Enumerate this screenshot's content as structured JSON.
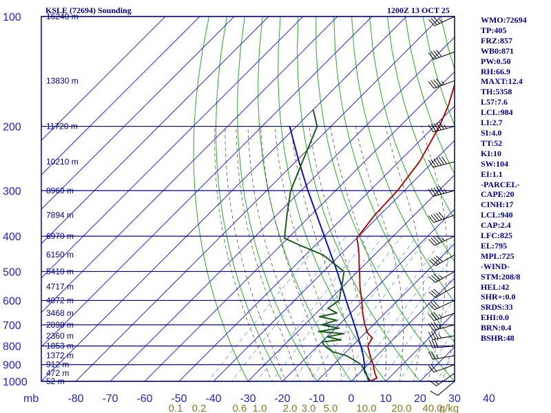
{
  "header": {
    "title_left": "KSLE (72694) Sounding",
    "title_right": "1200Z 13 OCT 25"
  },
  "indices": [
    "WMO:72694",
    "TP:405",
    "FRZ:857",
    "WB0:871",
    "PW:0.50",
    "RH:66.9",
    "MAXT:12.4",
    "TH:5358",
    "L57:7.6",
    "LCL:984",
    "LI:2.7",
    "SI:4.0",
    "TT:52",
    "KI:10",
    "SW:104",
    "EI:1.1",
    "-PARCEL-",
    "CAPE:20",
    "CINH:17",
    "LCL:940",
    "CAP:2.4",
    "LFC:825",
    "EL:795",
    "MPL:725",
    "-WIND-",
    "STM:208/8",
    "HEL:42",
    "SHR+:0.0",
    "SRDS:33",
    "EHI:0.0",
    "BRN:0.4",
    "BSHR:48"
  ],
  "colors": {
    "frame": "#00008b",
    "isotherm": "#2a2acc",
    "isobar": "#00008b",
    "dry_adiabat": "#22aa22",
    "moist_adiabat": "#555544",
    "mixing_ratio": "#55aadd",
    "temperature": "#aa1111",
    "dewpoint": "#1a5a1a",
    "parcel": "#1111aa",
    "axis_text": "#2222cc",
    "mixing_text": "#887722",
    "wind_barb": "#000000"
  },
  "chart_data": {
    "type": "skew-t",
    "x_axis": {
      "unit_label": "mb",
      "temperature_ticks": [
        -80,
        -70,
        -60,
        -50,
        -40,
        -30,
        -20,
        -10,
        0,
        10,
        20,
        30,
        40
      ],
      "temperature_tick_labels": [
        "-80",
        "-70",
        "-60",
        "-50",
        "-40",
        "-30",
        "-20",
        "-10",
        "0",
        "10",
        "20",
        "30",
        "40"
      ]
    },
    "y_axis": {
      "scale": "log",
      "pressure_ticks_mb": [
        100,
        200,
        300,
        400,
        500,
        600,
        700,
        800,
        900,
        1000
      ],
      "pressure_tick_labels": [
        "100",
        "200",
        "300",
        "400",
        "500",
        "600",
        "700",
        "800",
        "900",
        "1000"
      ],
      "range_mb": [
        1000,
        100
      ]
    },
    "mixing_ratio_labels": [
      "0.1",
      "0.2",
      "0.6",
      "1.0",
      "2.0",
      "3.0",
      "5.0",
      "10.0",
      "20.0",
      "40.0",
      "g/kg"
    ],
    "height_labels": [
      {
        "p": 100,
        "label": "16240 m"
      },
      {
        "p": 150,
        "label": "13830 m"
      },
      {
        "p": 200,
        "label": "11720 m"
      },
      {
        "p": 250,
        "label": "10210 m"
      },
      {
        "p": 300,
        "label": "8960 m"
      },
      {
        "p": 350,
        "label": "7894 m"
      },
      {
        "p": 400,
        "label": "6970 m"
      },
      {
        "p": 450,
        "label": "6150 m"
      },
      {
        "p": 500,
        "label": "5410 m"
      },
      {
        "p": 550,
        "label": "4717 m"
      },
      {
        "p": 600,
        "label": "4072 m"
      },
      {
        "p": 650,
        "label": "3468 m"
      },
      {
        "p": 700,
        "label": "2898 m"
      },
      {
        "p": 750,
        "label": "2360 m"
      },
      {
        "p": 800,
        "label": "1853 m"
      },
      {
        "p": 850,
        "label": "1372 m"
      },
      {
        "p": 900,
        "label": "912 m"
      },
      {
        "p": 950,
        "label": "472 m"
      },
      {
        "p": 1000,
        "label": "52 m"
      }
    ],
    "temperature": [
      {
        "p": 1000,
        "t": 5.5
      },
      {
        "p": 980,
        "t": 6.5
      },
      {
        "p": 950,
        "t": 4.5
      },
      {
        "p": 900,
        "t": 1.5
      },
      {
        "p": 850,
        "t": -2.0
      },
      {
        "p": 800,
        "t": -5.5
      },
      {
        "p": 760,
        "t": -6.5
      },
      {
        "p": 740,
        "t": -9.0
      },
      {
        "p": 700,
        "t": -12.5
      },
      {
        "p": 650,
        "t": -16.5
      },
      {
        "p": 600,
        "t": -20.5
      },
      {
        "p": 550,
        "t": -25.0
      },
      {
        "p": 500,
        "t": -29.5
      },
      {
        "p": 480,
        "t": -31.5
      },
      {
        "p": 450,
        "t": -34.5
      },
      {
        "p": 420,
        "t": -38.0
      },
      {
        "p": 405,
        "t": -40.0
      },
      {
        "p": 350,
        "t": -41.5
      },
      {
        "p": 300,
        "t": -42.0
      },
      {
        "p": 250,
        "t": -44.0
      },
      {
        "p": 200,
        "t": -48.5
      },
      {
        "p": 175,
        "t": -52.0
      },
      {
        "p": 150,
        "t": -57.0
      },
      {
        "p": 125,
        "t": -60.0
      },
      {
        "p": 100,
        "t": -64.0
      }
    ],
    "dewpoint": [
      {
        "p": 1000,
        "t": 5.0
      },
      {
        "p": 950,
        "t": 2.0
      },
      {
        "p": 900,
        "t": -2.0
      },
      {
        "p": 870,
        "t": -6.0
      },
      {
        "p": 850,
        "t": -9.0
      },
      {
        "p": 830,
        "t": -14.0
      },
      {
        "p": 800,
        "t": -18.0
      },
      {
        "p": 780,
        "t": -20.0
      },
      {
        "p": 770,
        "t": -15.0
      },
      {
        "p": 755,
        "t": -20.0
      },
      {
        "p": 740,
        "t": -16.0
      },
      {
        "p": 730,
        "t": -24.0
      },
      {
        "p": 715,
        "t": -19.0
      },
      {
        "p": 700,
        "t": -25.0
      },
      {
        "p": 680,
        "t": -22.0
      },
      {
        "p": 665,
        "t": -28.0
      },
      {
        "p": 650,
        "t": -24.0
      },
      {
        "p": 630,
        "t": -28.0
      },
      {
        "p": 600,
        "t": -27.0
      },
      {
        "p": 570,
        "t": -29.0
      },
      {
        "p": 540,
        "t": -31.0
      },
      {
        "p": 500,
        "t": -34.0
      },
      {
        "p": 450,
        "t": -45.0
      },
      {
        "p": 425,
        "t": -54.0
      },
      {
        "p": 405,
        "t": -61.0
      },
      {
        "p": 350,
        "t": -67.0
      },
      {
        "p": 300,
        "t": -73.0
      },
      {
        "p": 250,
        "t": -78.0
      },
      {
        "p": 200,
        "t": -84.0
      },
      {
        "p": 180,
        "t": -90.0
      }
    ],
    "parcel": [
      {
        "p": 1000,
        "t": 5.5
      },
      {
        "p": 940,
        "t": 1.0
      },
      {
        "p": 900,
        "t": -1.0
      },
      {
        "p": 850,
        "t": -4.0
      },
      {
        "p": 800,
        "t": -7.5
      },
      {
        "p": 700,
        "t": -15.5
      },
      {
        "p": 600,
        "t": -25.0
      },
      {
        "p": 500,
        "t": -36.0
      },
      {
        "p": 400,
        "t": -50.0
      },
      {
        "p": 300,
        "t": -68.0
      },
      {
        "p": 250,
        "t": -79.0
      },
      {
        "p": 200,
        "t": -92.0
      }
    ],
    "wind": [
      {
        "p": 1000,
        "dir": 230,
        "spd": 10
      },
      {
        "p": 950,
        "dir": 235,
        "spd": 15
      },
      {
        "p": 900,
        "dir": 250,
        "spd": 20
      },
      {
        "p": 850,
        "dir": 260,
        "spd": 25
      },
      {
        "p": 800,
        "dir": 265,
        "spd": 30
      },
      {
        "p": 750,
        "dir": 260,
        "spd": 35
      },
      {
        "p": 700,
        "dir": 255,
        "spd": 35
      },
      {
        "p": 650,
        "dir": 250,
        "spd": 35
      },
      {
        "p": 600,
        "dir": 245,
        "spd": 30
      },
      {
        "p": 550,
        "dir": 240,
        "spd": 30
      },
      {
        "p": 500,
        "dir": 240,
        "spd": 35
      },
      {
        "p": 450,
        "dir": 240,
        "spd": 40
      },
      {
        "p": 400,
        "dir": 245,
        "spd": 45
      },
      {
        "p": 350,
        "dir": 250,
        "spd": 50
      },
      {
        "p": 300,
        "dir": 255,
        "spd": 55
      },
      {
        "p": 250,
        "dir": 255,
        "spd": 60
      },
      {
        "p": 200,
        "dir": 255,
        "spd": 55
      },
      {
        "p": 150,
        "dir": 250,
        "spd": 45
      },
      {
        "p": 125,
        "dir": 250,
        "spd": 40
      },
      {
        "p": 100,
        "dir": 245,
        "spd": 35
      }
    ]
  }
}
